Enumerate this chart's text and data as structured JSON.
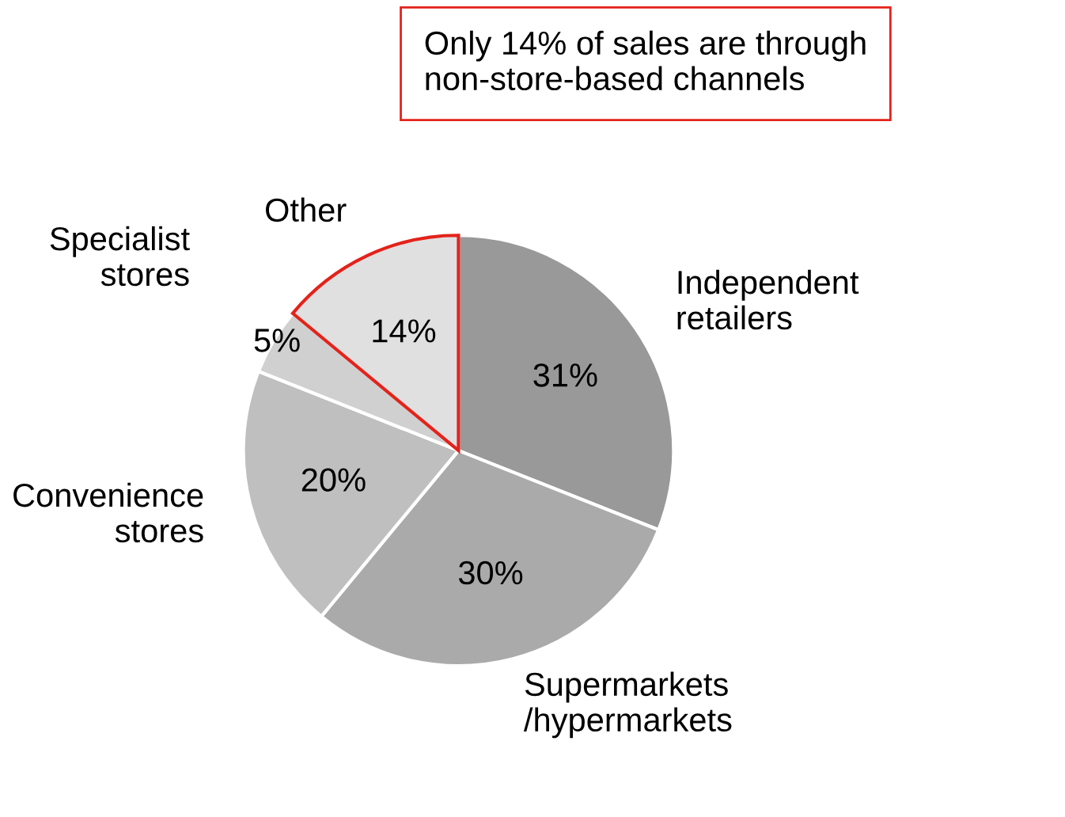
{
  "chart_data": {
    "type": "pie",
    "categories": [
      "Independent\nretailers",
      "Supermarkets\n/hypermarkets",
      "Convenience\nstores",
      "Specialist\nstores",
      "Other"
    ],
    "values": [
      31,
      30,
      20,
      5,
      14
    ],
    "colors": [
      "#999999",
      "#aaaaaa",
      "#bfbfbf",
      "#d0d0d0",
      "#e0e0e0"
    ],
    "value_labels": [
      "31%",
      "30%",
      "20%",
      "5%",
      "14%"
    ],
    "annotations": [
      "Only 14% of sales are through\nnon-store-based channels"
    ],
    "legend": false
  }
}
